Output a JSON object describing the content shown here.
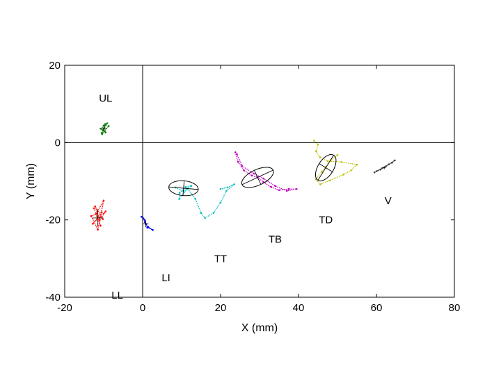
{
  "chart_data": {
    "type": "scatter",
    "title": "",
    "xlabel": "X (mm)",
    "ylabel": "Y (mm)",
    "xlim": [
      -20,
      80
    ],
    "ylim": [
      -40,
      20
    ],
    "xticks": [
      -20,
      0,
      20,
      40,
      60,
      80
    ],
    "yticks": [
      -40,
      -20,
      0,
      20
    ],
    "zero_lines": true,
    "grid": false,
    "legend": "none",
    "series": [
      {
        "color": "#007f00",
        "center": [
          -9.9,
          3.7
        ],
        "spread": [
          0.8,
          0.9
        ],
        "path": [
          [
            -10.5,
            2.5
          ],
          [
            -9.6,
            4.8
          ],
          [
            -10.2,
            3.2
          ],
          [
            -9.1,
            5
          ],
          [
            -10.8,
            3.6
          ],
          [
            -9.5,
            2.6
          ],
          [
            -10,
            4.4
          ],
          [
            -8.7,
            4.3
          ],
          [
            -10.4,
            2.2
          ],
          [
            -9.8,
            3.8
          ]
        ]
      },
      {
        "color": "#ff0000",
        "center": [
          -11.5,
          -19.5
        ],
        "spread": [
          1.4,
          2.2
        ],
        "path": [
          [
            -12.5,
            -17
          ],
          [
            -10.8,
            -21.5
          ],
          [
            -12,
            -18.5
          ],
          [
            -10,
            -15
          ],
          [
            -11.5,
            -22.5
          ],
          [
            -13.2,
            -19
          ],
          [
            -10.5,
            -18
          ],
          [
            -12.8,
            -21
          ],
          [
            -9.5,
            -17.8
          ],
          [
            -11,
            -20
          ],
          [
            -12.2,
            -16.5
          ],
          [
            -10.2,
            -19.8
          ]
        ]
      },
      {
        "color": "#0000ff",
        "center": [
          0.8,
          -21
        ],
        "spread": [
          0.7,
          0.9
        ],
        "path": [
          [
            -0.3,
            -19.2
          ],
          [
            0.5,
            -20
          ],
          [
            0.8,
            -21
          ],
          [
            1.4,
            -21.8
          ],
          [
            2.6,
            -22.6
          ],
          [
            1.2,
            -22
          ],
          [
            0.6,
            -20.6
          ],
          [
            0.2,
            -19.6
          ]
        ]
      },
      {
        "color": "#00bfbf",
        "center": [
          10.5,
          -11.8
        ],
        "ellipse": {
          "rx": 3.8,
          "ry": 1.9,
          "angle": -5
        },
        "path": [
          [
            8.4,
            -11.6
          ],
          [
            10.5,
            -12.6
          ],
          [
            12.5,
            -11.2
          ],
          [
            11,
            -11.5
          ],
          [
            9.5,
            -13
          ],
          [
            9.4,
            -14.6
          ],
          [
            11.5,
            -11.9
          ],
          [
            13.5,
            -14.5
          ],
          [
            15,
            -18.2
          ],
          [
            16,
            -19.5
          ],
          [
            18.2,
            -18.2
          ],
          [
            20,
            -15.5
          ],
          [
            21.5,
            -12.5
          ],
          [
            23.5,
            -10.8
          ],
          [
            21.8,
            -11.6
          ],
          [
            20,
            -12
          ]
        ]
      },
      {
        "color": "#bf00bf",
        "center": [
          29.5,
          -9
        ],
        "ellipse": {
          "rx": 4.4,
          "ry": 2.0,
          "angle": 25
        },
        "path": [
          [
            23.8,
            -2.5
          ],
          [
            24.5,
            -5
          ],
          [
            26,
            -7.2
          ],
          [
            28,
            -8.5
          ],
          [
            29.5,
            -9
          ],
          [
            31,
            -10.2
          ],
          [
            33,
            -11.5
          ],
          [
            35,
            -12.3
          ],
          [
            37.5,
            -12
          ],
          [
            39.5,
            -12
          ],
          [
            37,
            -12.5
          ],
          [
            34,
            -11.2
          ],
          [
            31,
            -9.3
          ],
          [
            28.5,
            -8
          ],
          [
            25.5,
            -6
          ],
          [
            24.2,
            -3
          ]
        ]
      },
      {
        "color": "#bfbf00",
        "center": [
          47,
          -6.5
        ],
        "ellipse": {
          "rx": 3.8,
          "ry": 2.0,
          "angle": 58
        },
        "path": [
          [
            44,
            0.5
          ],
          [
            45,
            -0.5
          ],
          [
            44.5,
            -2.2
          ],
          [
            45.5,
            -3.8
          ],
          [
            47.5,
            -4.8
          ],
          [
            51,
            -5
          ],
          [
            55,
            -5.7
          ],
          [
            53.5,
            -7.2
          ],
          [
            51.5,
            -8.3
          ],
          [
            48,
            -9.8
          ],
          [
            45.6,
            -10.8
          ],
          [
            44.5,
            -9.5
          ],
          [
            46,
            -7.5
          ],
          [
            47,
            -6.3
          ],
          [
            48.2,
            -4.6
          ],
          [
            50,
            -3.2
          ]
        ]
      },
      {
        "color": "#404040",
        "center": [
          62,
          -6.5
        ],
        "spread": [
          0.4,
          0.4
        ],
        "path": [
          [
            59.5,
            -7.7
          ],
          [
            61,
            -7
          ],
          [
            62.5,
            -6.1
          ],
          [
            64,
            -5.2
          ],
          [
            64.7,
            -4.6
          ],
          [
            63.2,
            -5.6
          ],
          [
            61.5,
            -6.6
          ],
          [
            60,
            -7.4
          ]
        ]
      }
    ],
    "annotations": [
      {
        "text": "UL",
        "x": -9.5,
        "y": 11.5
      },
      {
        "text": "LL",
        "x": -6.5,
        "y": -39.5
      },
      {
        "text": "LI",
        "x": 6,
        "y": -35
      },
      {
        "text": "TT",
        "x": 20,
        "y": -30
      },
      {
        "text": "TB",
        "x": 34,
        "y": -25
      },
      {
        "text": "TD",
        "x": 47,
        "y": -20
      },
      {
        "text": "V",
        "x": 63,
        "y": -15
      }
    ]
  }
}
